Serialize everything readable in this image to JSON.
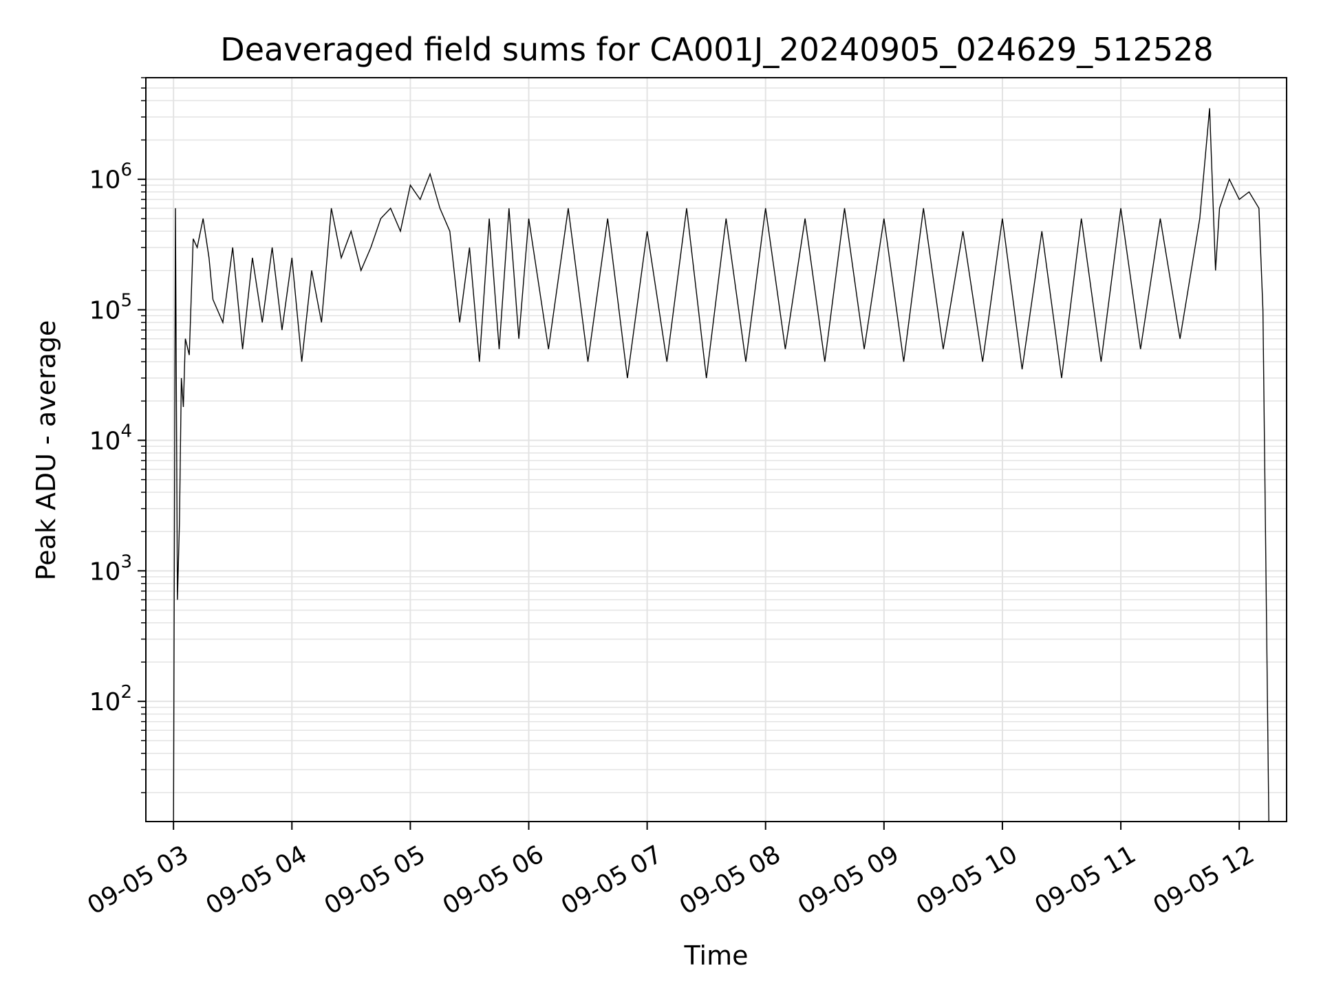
{
  "chart_data": {
    "type": "line",
    "title": "Deaveraged field sums for CA001J_20240905_024629_512528",
    "xlabel": "Time",
    "ylabel": "Peak ADU - average",
    "yscale": "log",
    "ylim": [
      12,
      6000000
    ],
    "xlim": [
      "09-05 02:46",
      "09-05 12:24"
    ],
    "grid": true,
    "line_color": "#000000",
    "grid_color": "#e3e3e3",
    "x_ticks": [
      "09-05 03",
      "09-05 04",
      "09-05 05",
      "09-05 06",
      "09-05 07",
      "09-05 08",
      "09-05 09",
      "09-05 10",
      "09-05 11",
      "09-05 12"
    ],
    "y_ticks": [
      {
        "base": "10",
        "exp": "2",
        "value": 100
      },
      {
        "base": "10",
        "exp": "3",
        "value": 1000
      },
      {
        "base": "10",
        "exp": "4",
        "value": 10000
      },
      {
        "base": "10",
        "exp": "5",
        "value": 100000
      },
      {
        "base": "10",
        "exp": "6",
        "value": 1000000
      }
    ],
    "series": [
      {
        "x": [
          "09-05 03:00",
          "09-05 03:01",
          "09-05 03:02",
          "09-05 03:03",
          "09-05 03:04",
          "09-05 03:05",
          "09-05 03:06",
          "09-05 03:08",
          "09-05 03:10",
          "09-05 03:12",
          "09-05 03:15",
          "09-05 03:18",
          "09-05 03:20",
          "09-05 03:25",
          "09-05 03:30",
          "09-05 03:35",
          "09-05 03:40",
          "09-05 03:45",
          "09-05 03:50",
          "09-05 03:55",
          "09-05 04:00",
          "09-05 04:05",
          "09-05 04:10",
          "09-05 04:15",
          "09-05 04:20",
          "09-05 04:25",
          "09-05 04:30",
          "09-05 04:35",
          "09-05 04:40",
          "09-05 04:45",
          "09-05 04:50",
          "09-05 04:55",
          "09-05 05:00",
          "09-05 05:05",
          "09-05 05:10",
          "09-05 05:15",
          "09-05 05:20",
          "09-05 05:25",
          "09-05 05:30",
          "09-05 05:35",
          "09-05 05:40",
          "09-05 05:45",
          "09-05 05:50",
          "09-05 05:55",
          "09-05 06:00",
          "09-05 06:10",
          "09-05 06:20",
          "09-05 06:30",
          "09-05 06:40",
          "09-05 06:50",
          "09-05 07:00",
          "09-05 07:10",
          "09-05 07:20",
          "09-05 07:30",
          "09-05 07:40",
          "09-05 07:50",
          "09-05 08:00",
          "09-05 08:10",
          "09-05 08:20",
          "09-05 08:30",
          "09-05 08:40",
          "09-05 08:50",
          "09-05 09:00",
          "09-05 09:10",
          "09-05 09:20",
          "09-05 09:30",
          "09-05 09:40",
          "09-05 09:50",
          "09-05 10:00",
          "09-05 10:10",
          "09-05 10:20",
          "09-05 10:30",
          "09-05 10:40",
          "09-05 10:50",
          "09-05 11:00",
          "09-05 11:10",
          "09-05 11:20",
          "09-05 11:30",
          "09-05 11:40",
          "09-05 11:45",
          "09-05 11:48",
          "09-05 11:50",
          "09-05 11:55",
          "09-05 12:00",
          "09-05 12:05",
          "09-05 12:10",
          "09-05 12:12",
          "09-05 12:15"
        ],
        "y": [
          12,
          600000,
          600,
          2300,
          30000,
          18000,
          60000,
          45000,
          350000,
          300000,
          500000,
          250000,
          120000,
          80000,
          300000,
          50000,
          250000,
          80000,
          300000,
          70000,
          250000,
          40000,
          200000,
          80000,
          600000,
          250000,
          400000,
          200000,
          300000,
          500000,
          600000,
          400000,
          900000,
          700000,
          1100000,
          600000,
          400000,
          80000,
          300000,
          40000,
          500000,
          50000,
          600000,
          60000,
          500000,
          50000,
          600000,
          40000,
          500000,
          30000,
          400000,
          40000,
          600000,
          30000,
          500000,
          40000,
          600000,
          50000,
          500000,
          40000,
          600000,
          50000,
          500000,
          40000,
          600000,
          50000,
          400000,
          40000,
          500000,
          35000,
          400000,
          30000,
          500000,
          40000,
          600000,
          50000,
          500000,
          60000,
          500000,
          3500000,
          200000,
          600000,
          1000000,
          700000,
          800000,
          600000,
          100000,
          12
        ]
      }
    ]
  }
}
